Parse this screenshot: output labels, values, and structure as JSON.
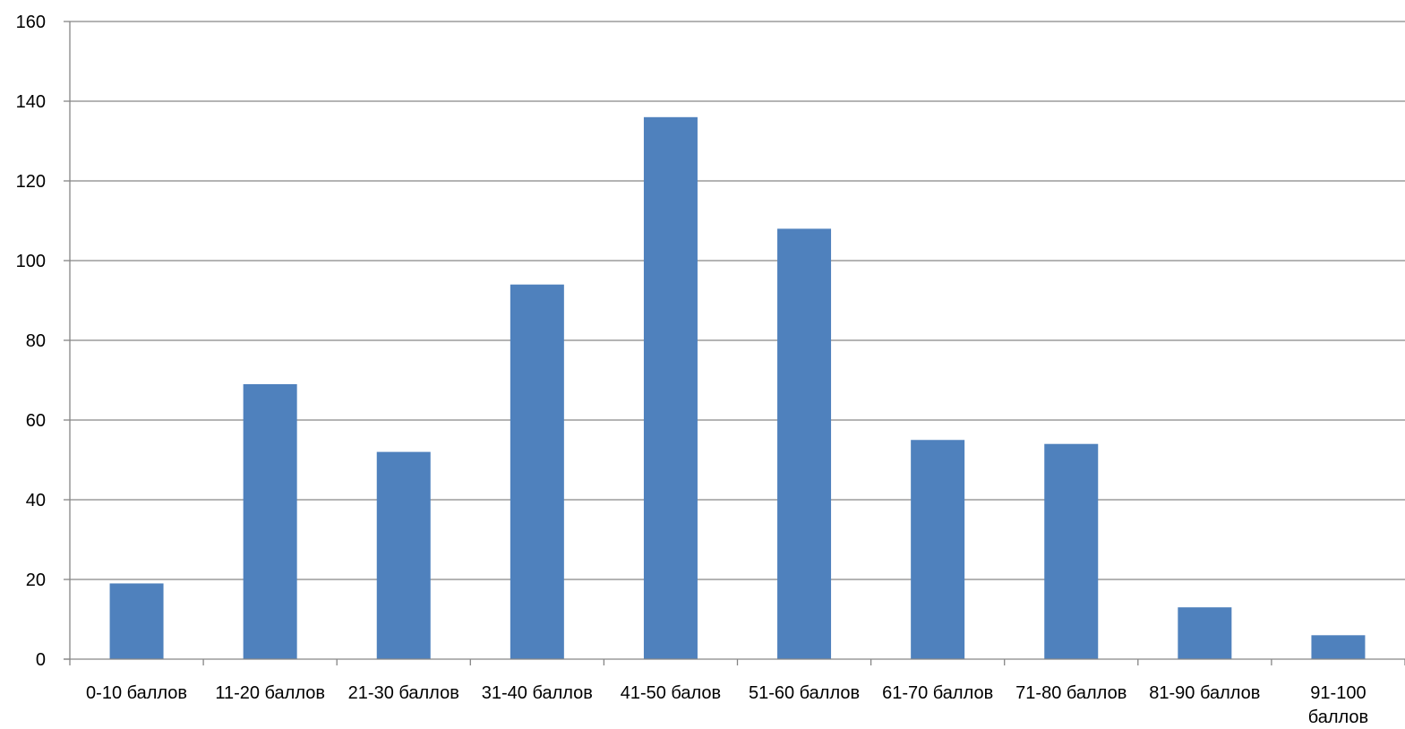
{
  "chart_data": {
    "type": "bar",
    "title": "",
    "xlabel": "",
    "ylabel": "",
    "categories": [
      "0-10 баллов",
      "11-20 баллов",
      "21-30 баллов",
      "31-40 баллов",
      "41-50 балов",
      "51-60 баллов",
      "61-70 баллов",
      "71-80 баллов",
      "81-90 баллов",
      "91-100 баллов"
    ],
    "values": [
      19,
      69,
      52,
      94,
      136,
      108,
      55,
      54,
      13,
      6
    ],
    "ylim": [
      0,
      160
    ],
    "yticks": [
      "0",
      "20",
      "40",
      "60",
      "80",
      "100",
      "120",
      "140",
      "160"
    ],
    "grid": true,
    "legend": "none",
    "colors": {
      "bar": "#4f81bd",
      "gridline": "#868686",
      "axis": "#868686"
    }
  }
}
